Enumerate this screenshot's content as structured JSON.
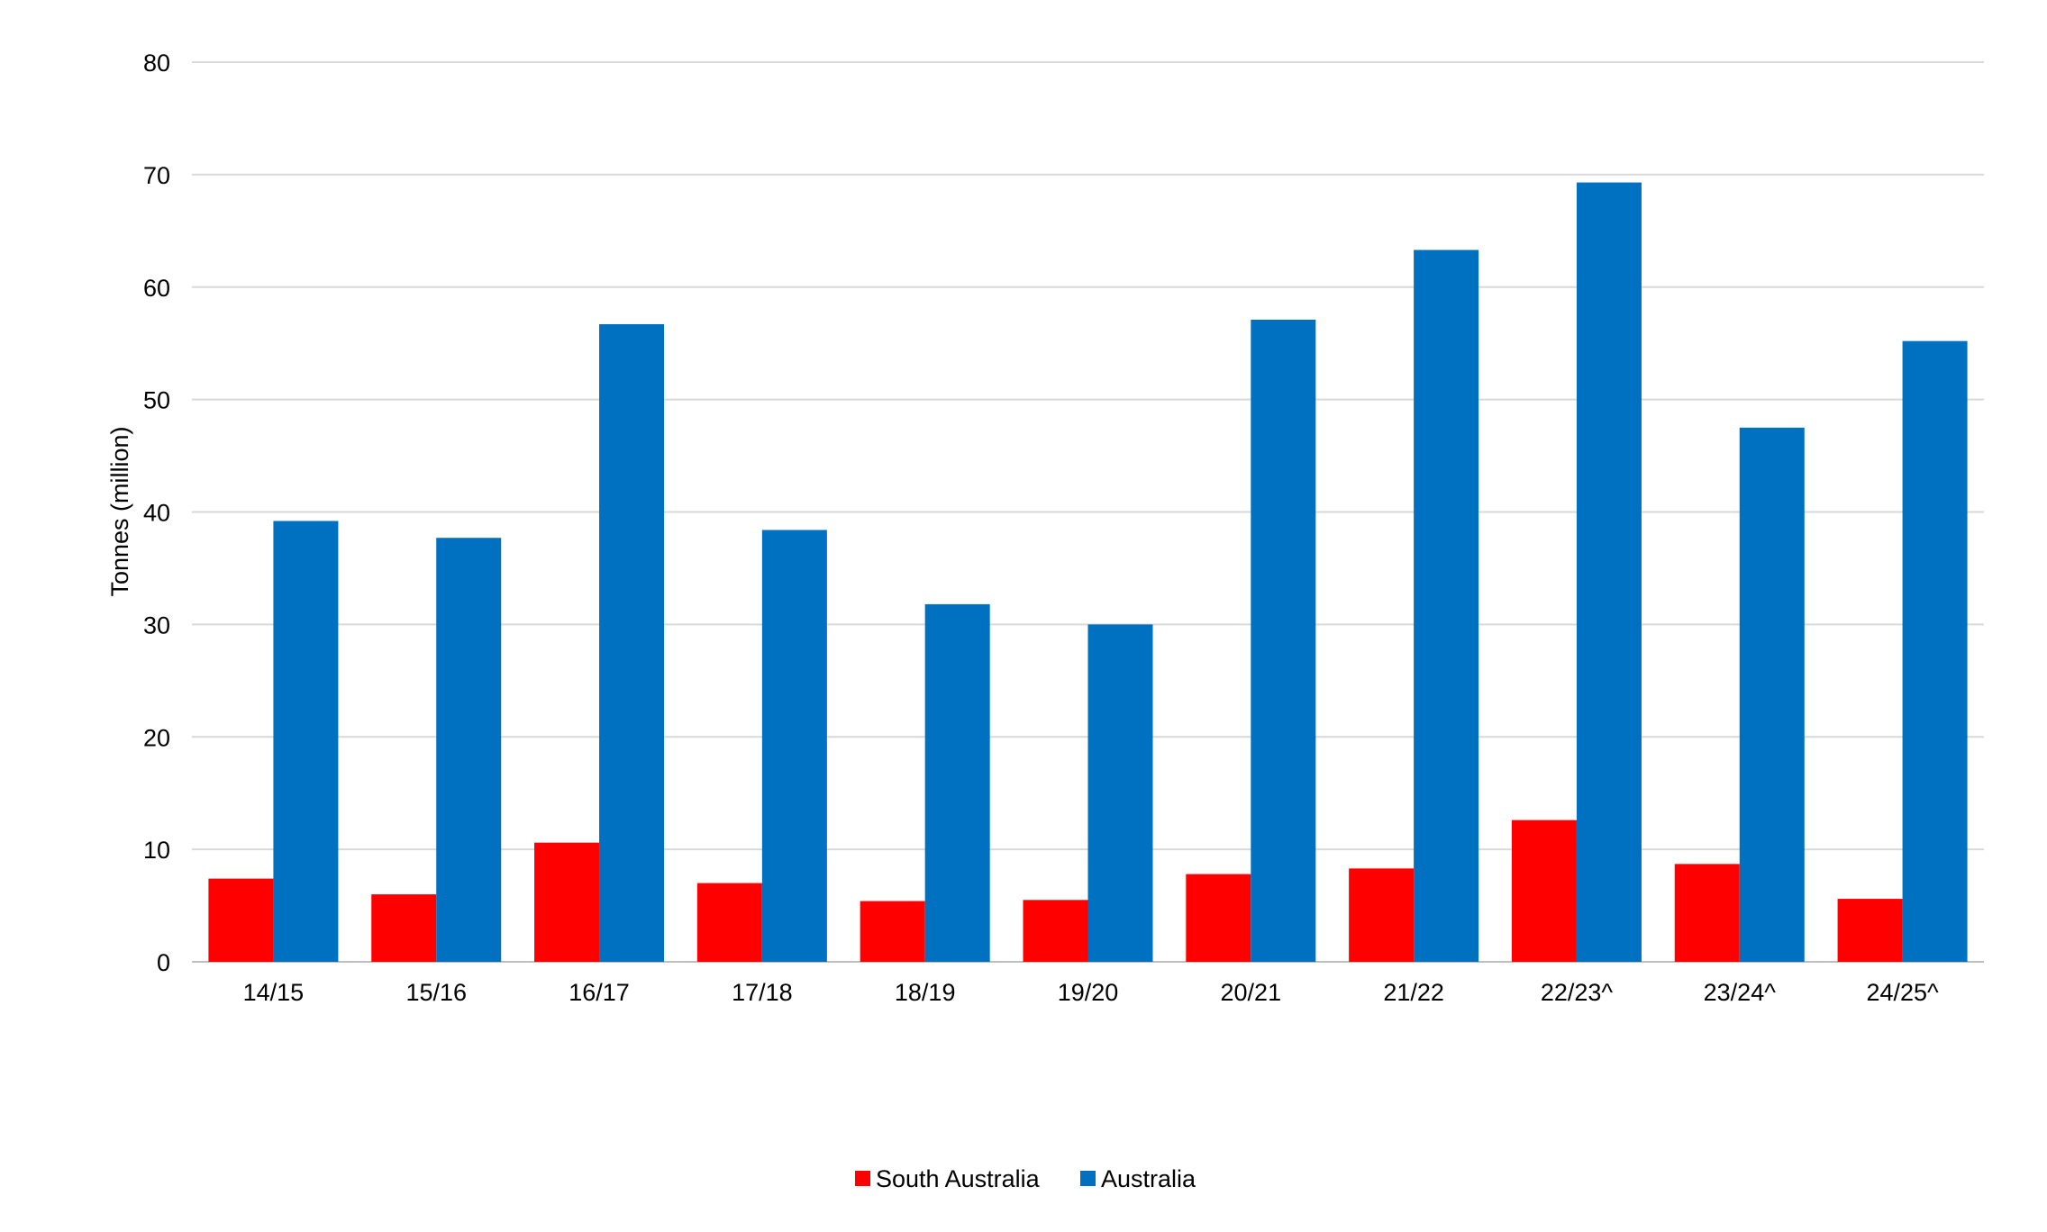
{
  "chart_data": {
    "type": "bar",
    "title": "",
    "xlabel": "",
    "ylabel": "Tonnes (million)",
    "ylim": [
      0,
      80
    ],
    "yticks": [
      0,
      10,
      20,
      30,
      40,
      50,
      60,
      70,
      80
    ],
    "grid": true,
    "legend_position": "bottom-center",
    "categories": [
      "14/15",
      "15/16",
      "16/17",
      "17/18",
      "18/19",
      "19/20",
      "20/21",
      "21/22",
      "22/23^",
      "23/24^",
      "24/25^"
    ],
    "series": [
      {
        "name": "South Australia",
        "color": "#ff0000",
        "values": [
          7.4,
          6.0,
          10.6,
          7.0,
          5.4,
          5.5,
          7.8,
          8.3,
          12.6,
          8.7,
          5.6
        ]
      },
      {
        "name": "Australia",
        "color": "#0070c0",
        "values": [
          39.2,
          37.7,
          56.7,
          38.4,
          31.8,
          30.0,
          57.1,
          63.3,
          69.3,
          47.5,
          55.2
        ]
      }
    ]
  }
}
